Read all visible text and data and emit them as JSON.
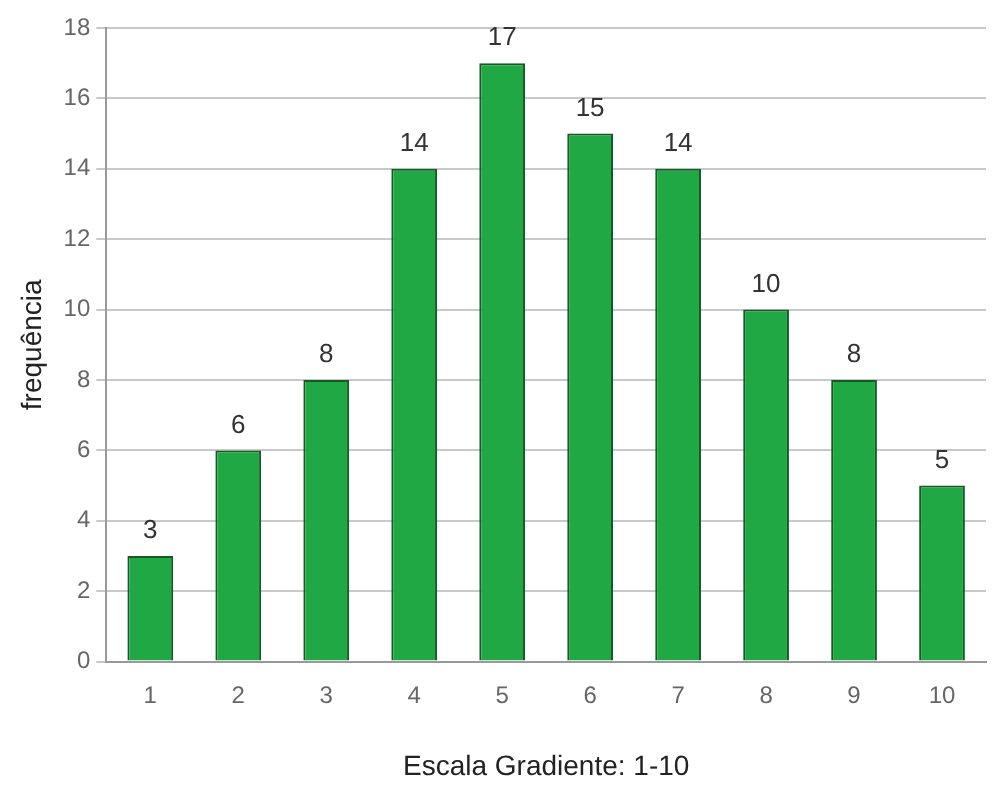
{
  "chart_data": {
    "type": "bar",
    "xlabel": "Escala Gradiente: 1-10",
    "ylabel": "frequência",
    "categories": [
      "1",
      "2",
      "3",
      "4",
      "5",
      "6",
      "7",
      "8",
      "9",
      "10"
    ],
    "values": [
      3,
      6,
      8,
      14,
      17,
      15,
      14,
      10,
      8,
      5
    ],
    "color": "#1fa843",
    "ylim": [
      0,
      18
    ],
    "yticks": [
      0,
      2,
      4,
      6,
      8,
      10,
      12,
      14,
      16,
      18
    ],
    "grid": "y",
    "legend": false,
    "data_labels": true
  }
}
